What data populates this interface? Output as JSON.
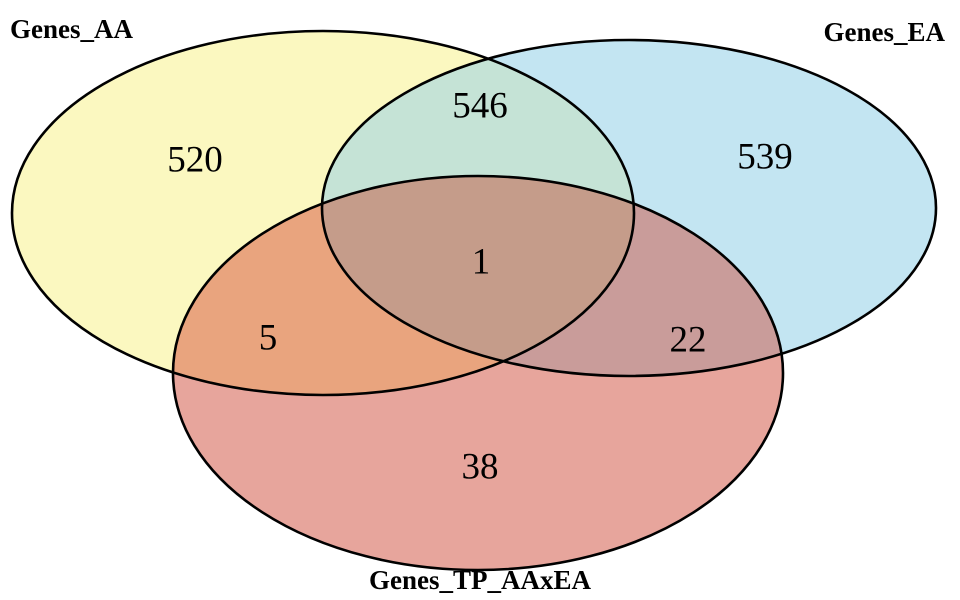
{
  "sets": {
    "aa": {
      "name": "Genes_AA",
      "color": "#fbf8c0"
    },
    "ea": {
      "name": "Genes_EA",
      "color": "#c3e5f2"
    },
    "tp": {
      "name": "Genes_TP_AAxEA",
      "color": "#e7a59c"
    }
  },
  "regions": {
    "aa_only": "520",
    "ea_only": "539",
    "aa_ea": "546",
    "aa_ea_tp": "1",
    "aa_tp": "5",
    "ea_tp": "22",
    "tp_only": "38"
  },
  "region_colors": {
    "aa_ea": "#c5e3d6",
    "aa_tp": "#e9a47e",
    "ea_tp": "#c99c9a",
    "aa_ea_tp": "#c59c8a"
  },
  "stroke_color": "#000000"
}
